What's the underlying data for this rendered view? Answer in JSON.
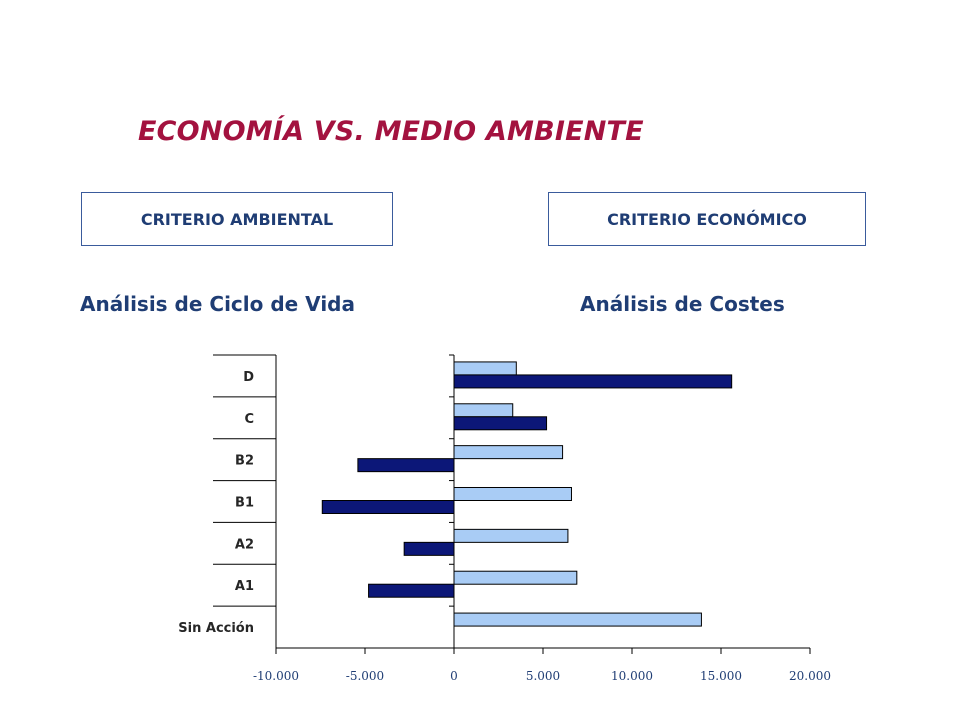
{
  "header": {
    "title": "ECONOMÍA VS. MEDIO AMBIENTE"
  },
  "criteria": {
    "left_label": "CRITERIO AMBIENTAL",
    "right_label": "CRITERIO ECONÓMICO"
  },
  "analyses": {
    "left_label": "Análisis de Ciclo de Vida",
    "right_label": "Análisis de Costes"
  },
  "colors": {
    "title": "#a3123f",
    "text_blue": "#1f3d74",
    "bar_light": "#a9ccf5",
    "bar_dark": "#0c1778"
  },
  "chart_data": {
    "type": "bar",
    "orientation": "horizontal",
    "categories": [
      "D",
      "C",
      "B2",
      "B1",
      "A2",
      "A1",
      "Sin Acción"
    ],
    "series": [
      {
        "values": [
          3500,
          3300,
          6100,
          6600,
          6400,
          6900,
          13900
        ]
      },
      {
        "values": [
          15600,
          5200,
          -5400,
          -7400,
          -2800,
          -4800,
          null
        ]
      }
    ],
    "x_ticks": [
      "-10.000",
      "-5.000",
      "0",
      "5.000",
      "10.000",
      "15.000",
      "20.000"
    ],
    "xlim": [
      -10000,
      20000
    ],
    "grid": false,
    "legend": "none"
  }
}
